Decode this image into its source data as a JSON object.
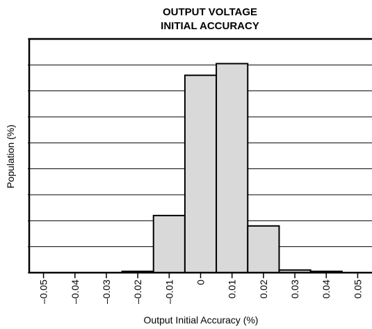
{
  "chart_data": {
    "type": "histogram",
    "title": [
      "OUTPUT VOLTAGE",
      "INITIAL ACCURACY"
    ],
    "x_label": "Output Initial Accuracy (%)",
    "y_label": "Population (%)",
    "bins": [
      -0.055,
      -0.045,
      -0.035,
      -0.025,
      -0.015,
      -0.005,
      0.005,
      0.015,
      0.025,
      0.035,
      0.045,
      0.055
    ],
    "values": [
      0,
      0,
      0,
      0.05,
      2.2,
      7.6,
      8.05,
      1.8,
      0.1,
      0.05,
      0
    ],
    "color": "#d9d9d9",
    "xlim": [
      -0.055,
      0.055
    ],
    "xticks": [
      {
        "value": -0.05,
        "label": "–0.05"
      },
      {
        "value": -0.04,
        "label": "–0.04"
      },
      {
        "value": -0.03,
        "label": "–0.03"
      },
      {
        "value": -0.02,
        "label": "–0.02"
      },
      {
        "value": -0.01,
        "label": "–0.01"
      },
      0,
      0.01,
      0.02,
      0.03,
      0.04,
      0.05
    ],
    "ylim": [
      0,
      9
    ],
    "yticks": [
      0,
      1,
      2,
      3,
      4,
      5,
      6,
      7,
      8,
      9
    ],
    "grid": true
  }
}
